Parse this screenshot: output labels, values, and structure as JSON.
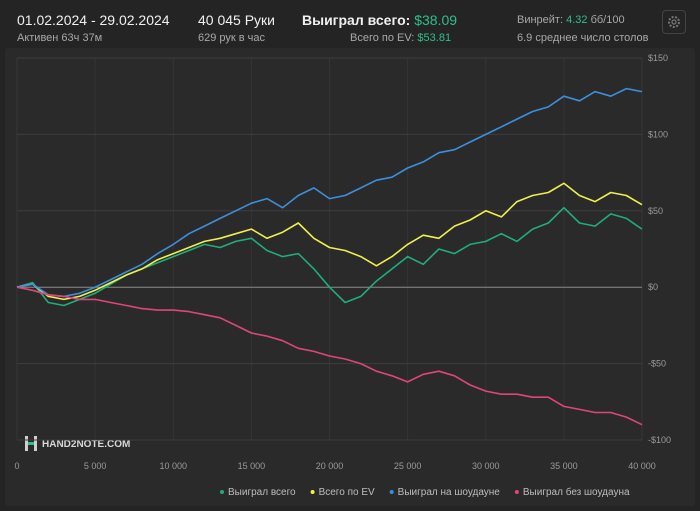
{
  "header": {
    "date_range": "01.02.2024 - 29.02.2024",
    "active": "Активен 63ч 37м",
    "hands": "40 045 Руки",
    "hands_per_hour": "629 рук в час",
    "won_label": "Выиграл всего:",
    "won_value": "$38.09",
    "ev_label": "Всего по EV:",
    "ev_value": "$53.81",
    "winrate_label": "Винрейт:",
    "winrate_value": "4.32",
    "winrate_unit": "бб/100",
    "tables": "6.9 среднее число столов"
  },
  "logo": "HAND2NOTE.COM",
  "chart_data": {
    "type": "line",
    "grid": true,
    "x": [
      0,
      1000,
      2000,
      3000,
      4000,
      5000,
      6000,
      7000,
      8000,
      9000,
      10000,
      11000,
      12000,
      13000,
      14000,
      15000,
      16000,
      17000,
      18000,
      19000,
      20000,
      21000,
      22000,
      23000,
      24000,
      25000,
      26000,
      27000,
      28000,
      29000,
      30000,
      31000,
      32000,
      33000,
      34000,
      35000,
      36000,
      37000,
      38000,
      39000,
      40000
    ],
    "xlim": [
      0,
      40000
    ],
    "xticks": [
      0,
      {
        "value": 5000,
        "label": "5 000"
      },
      {
        "value": 10000,
        "label": "10 000"
      },
      {
        "value": 15000,
        "label": "15 000"
      },
      {
        "value": 20000,
        "label": "20 000"
      },
      {
        "value": 25000,
        "label": "25 000"
      },
      {
        "value": 30000,
        "label": "30 000"
      },
      {
        "value": 35000,
        "label": "35 000"
      },
      {
        "value": 40000,
        "label": "40 000"
      }
    ],
    "ylim": [
      -100,
      150
    ],
    "yticks": [
      {
        "value": 150,
        "label": "$150"
      },
      {
        "value": 100,
        "label": "$100"
      },
      {
        "value": 50,
        "label": "$50"
      },
      {
        "value": 0,
        "label": "$0"
      },
      {
        "value": -50,
        "label": "-$50"
      },
      {
        "value": -100,
        "label": "-$100"
      }
    ],
    "series": [
      {
        "name": "Выиграл всего",
        "color": "#1fae7a",
        "values": [
          0,
          3,
          -10,
          -12,
          -8,
          -4,
          2,
          8,
          12,
          16,
          20,
          24,
          28,
          26,
          30,
          32,
          24,
          20,
          22,
          12,
          0,
          -10,
          -6,
          4,
          12,
          20,
          15,
          25,
          22,
          28,
          30,
          35,
          30,
          38,
          42,
          52,
          42,
          40,
          48,
          45,
          38
        ]
      },
      {
        "name": "Всего по EV",
        "color": "#f0ef4c",
        "values": [
          0,
          2,
          -6,
          -8,
          -6,
          -2,
          3,
          8,
          12,
          18,
          22,
          26,
          30,
          32,
          35,
          38,
          32,
          36,
          42,
          32,
          26,
          24,
          20,
          14,
          20,
          28,
          34,
          32,
          40,
          44,
          50,
          46,
          56,
          60,
          62,
          68,
          60,
          56,
          62,
          60,
          54
        ]
      },
      {
        "name": "Выиграл на шоудауне",
        "color": "#3d8fdd",
        "values": [
          0,
          2,
          -5,
          -6,
          -4,
          0,
          5,
          10,
          15,
          22,
          28,
          35,
          40,
          45,
          50,
          55,
          58,
          52,
          60,
          65,
          58,
          60,
          65,
          70,
          72,
          78,
          82,
          88,
          90,
          95,
          100,
          105,
          110,
          115,
          118,
          125,
          122,
          128,
          125,
          130,
          128
        ]
      },
      {
        "name": "Выиграл без шоудауна",
        "color": "#e0457a",
        "values": [
          0,
          -2,
          -5,
          -6,
          -8,
          -8,
          -10,
          -12,
          -14,
          -15,
          -15,
          -16,
          -18,
          -20,
          -25,
          -30,
          -32,
          -35,
          -40,
          -42,
          -45,
          -47,
          -50,
          -55,
          -58,
          -62,
          -57,
          -55,
          -58,
          -64,
          -68,
          -70,
          -70,
          -72,
          -72,
          -78,
          -80,
          -82,
          -82,
          -85,
          -90
        ]
      }
    ]
  }
}
